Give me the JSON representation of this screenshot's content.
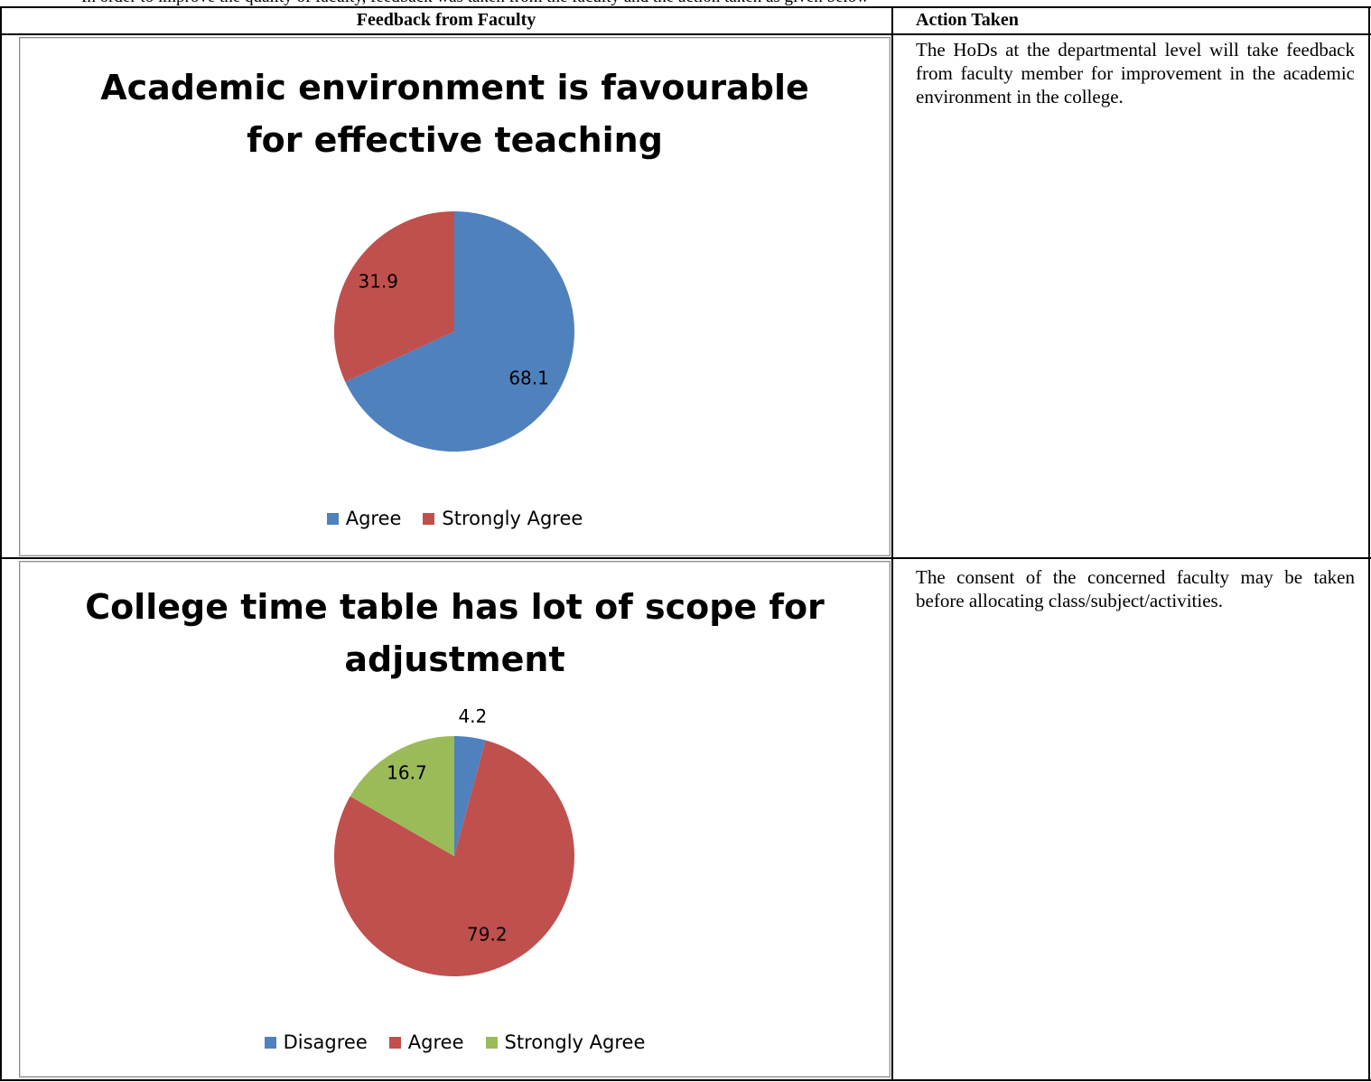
{
  "header_strip_text": "In order to improve the quality of faculty, feedback was taken from the faculty and the action taken as given below",
  "table": {
    "headers": {
      "feedback": "Feedback from Faculty",
      "action": "Action Taken"
    },
    "rows": [
      {
        "action_text": "The HoDs at the departmental level will take feedback from faculty member for improvement in the academic environment in the college."
      },
      {
        "action_text": "The consent of the concerned faculty may be taken before allocating class/subject/activities."
      }
    ]
  },
  "colors": {
    "blue": "#4F81BD",
    "red": "#C0504D",
    "green": "#9BBB59"
  },
  "chart_data": [
    {
      "type": "pie",
      "title_lines": [
        "Academic environment is favourable",
        "for effective teaching"
      ],
      "labels": [
        "Agree",
        "Strongly Agree"
      ],
      "values": [
        68.1,
        31.9
      ],
      "value_labels": [
        "68.1",
        "31.9"
      ],
      "colors": [
        "#4F81BD",
        "#C0504D"
      ],
      "legend": "bottom"
    },
    {
      "type": "pie",
      "title_lines": [
        "College time table has lot of scope for",
        "adjustment"
      ],
      "labels": [
        "Disagree",
        "Agree",
        "Strongly Agree"
      ],
      "values": [
        4.2,
        79.2,
        16.7
      ],
      "value_labels": [
        "4.2",
        "79.2",
        "16.7"
      ],
      "colors": [
        "#4F81BD",
        "#C0504D",
        "#9BBB59"
      ],
      "legend": "bottom"
    }
  ]
}
